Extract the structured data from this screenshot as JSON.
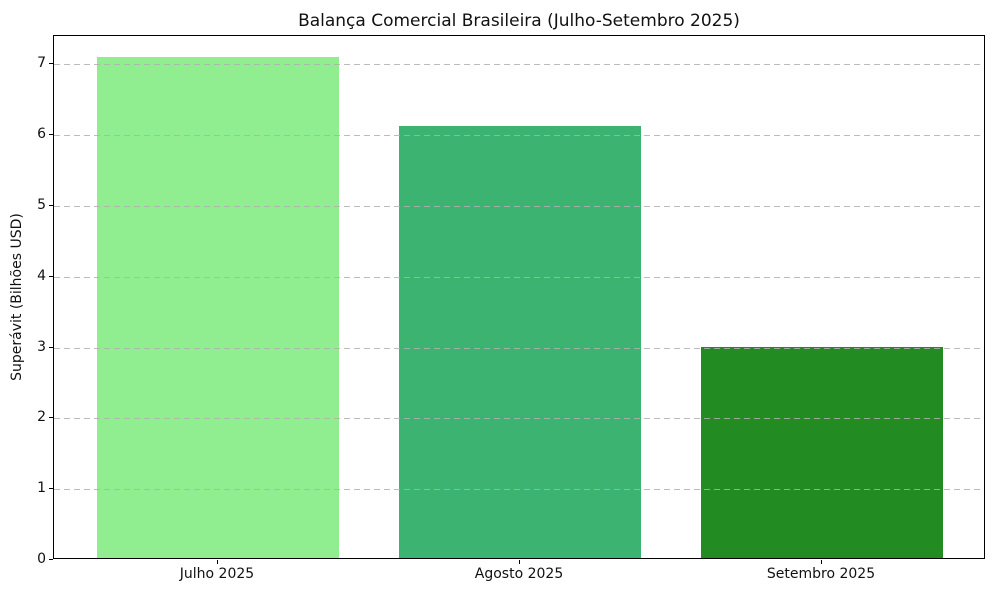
{
  "chart_data": {
    "type": "bar",
    "title": "Balança Comercial Brasileira (Julho-Setembro 2025)",
    "ylabel": "Superávit (Bilhões USD)",
    "xlabel": "",
    "categories": [
      "Julho 2025",
      "Agosto 2025",
      "Setembro 2025"
    ],
    "values": [
      7.08,
      6.1,
      2.98
    ],
    "bar_colors": [
      "#90EE90",
      "#3CB371",
      "#228B22"
    ],
    "ylim": [
      0,
      7.4
    ],
    "yticks": [
      0,
      1,
      2,
      3,
      4,
      5,
      6,
      7
    ],
    "grid": {
      "axis": "y",
      "style": "dashed",
      "color": "#bbbbbb",
      "above_bars": true
    },
    "legend": "none",
    "background": "#ffffff"
  }
}
